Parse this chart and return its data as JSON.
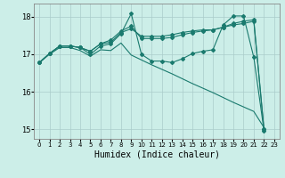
{
  "xlabel": "Humidex (Indice chaleur)",
  "background_color": "#cceee8",
  "line_color": "#1a7a6e",
  "grid_color": "#aaccca",
  "xlim": [
    -0.5,
    23.5
  ],
  "ylim": [
    14.75,
    18.35
  ],
  "yticks": [
    15,
    16,
    17,
    18
  ],
  "xticks": [
    0,
    1,
    2,
    3,
    4,
    5,
    6,
    7,
    8,
    9,
    10,
    11,
    12,
    13,
    14,
    15,
    16,
    17,
    18,
    19,
    20,
    21,
    22,
    23
  ],
  "series_marked": [
    [
      16.78,
      17.02,
      17.22,
      17.22,
      17.18,
      17.0,
      17.22,
      17.28,
      17.55,
      18.08,
      17.0,
      16.82,
      16.82,
      16.78,
      16.88,
      17.02,
      17.08,
      17.12,
      17.78,
      18.02,
      18.02,
      16.92,
      14.97
    ],
    [
      16.78,
      17.02,
      17.22,
      17.22,
      17.18,
      17.08,
      17.28,
      17.38,
      17.62,
      17.75,
      17.42,
      17.42,
      17.42,
      17.45,
      17.52,
      17.58,
      17.62,
      17.65,
      17.72,
      17.78,
      17.82,
      17.88,
      15.0
    ],
    [
      16.78,
      17.02,
      17.22,
      17.22,
      17.18,
      17.08,
      17.28,
      17.32,
      17.58,
      17.68,
      17.48,
      17.48,
      17.48,
      17.52,
      17.58,
      17.62,
      17.65,
      17.65,
      17.72,
      17.82,
      17.88,
      17.92,
      15.0
    ]
  ],
  "series_line_only": [
    [
      16.78,
      17.0,
      17.18,
      17.18,
      17.1,
      16.95,
      17.12,
      17.1,
      17.3,
      16.98,
      16.85,
      16.72,
      16.6,
      16.48,
      16.35,
      16.22,
      16.1,
      15.98,
      15.85,
      15.72,
      15.6,
      15.48,
      15.05
    ]
  ]
}
